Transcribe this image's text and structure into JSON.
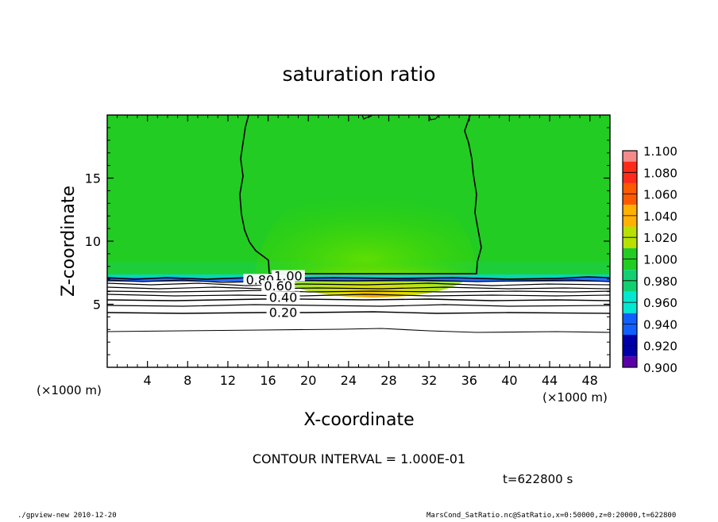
{
  "chart_data": {
    "type": "heatmap",
    "title": "saturation ratio",
    "xlabel": "X-coordinate",
    "ylabel": "Z-coordinate",
    "x_unit_left": "(×1000 m)",
    "x_unit_right": "(×1000 m)",
    "xlim": [
      0,
      50
    ],
    "ylim": [
      0,
      20
    ],
    "xticks": [
      4,
      8,
      12,
      16,
      20,
      24,
      28,
      32,
      36,
      40,
      44,
      48
    ],
    "yticks": [
      5,
      10,
      15
    ],
    "colorbar": {
      "levels": [
        1.1,
        1.08,
        1.06,
        1.04,
        1.02,
        1.0,
        0.98,
        0.96,
        0.94,
        0.92,
        0.9
      ],
      "labels": [
        "1.100",
        "1.080",
        "1.060",
        "1.040",
        "1.020",
        "1.000",
        "0.980",
        "0.960",
        "0.940",
        "0.920",
        "0.900"
      ],
      "colors": [
        "#f48a8a",
        "#ff2a1a",
        "#ff5a00",
        "#ffb000",
        "#b8e000",
        "#22cc22",
        "#10d070",
        "#00e8d0",
        "#1060ff",
        "#0000a8",
        "#5a00aa"
      ]
    },
    "contour_labels": [
      {
        "text": "1.00",
        "x": 18.0,
        "z": 7.2
      },
      {
        "text": "0.80",
        "x": 15.2,
        "z": 6.9
      },
      {
        "text": "0.60",
        "x": 17.0,
        "z": 6.4
      },
      {
        "text": "0.40",
        "x": 17.5,
        "z": 5.5
      },
      {
        "text": "0.20",
        "x": 17.5,
        "z": 4.3
      }
    ],
    "contour_interval": "CONTOUR INTERVAL = 1.000E-01",
    "time": "t=622800 s"
  },
  "footer": {
    "left": "./gpview-new  2010-12-20",
    "right": "MarsCond_SatRatio.nc@SatRatio,x=0:50000,z=0:20000,t=622800"
  },
  "colors": {
    "background": "#ffffff",
    "field_main": "#22cc22",
    "field_bright": "#50dc10",
    "field_edge": "#1fcf3a"
  }
}
